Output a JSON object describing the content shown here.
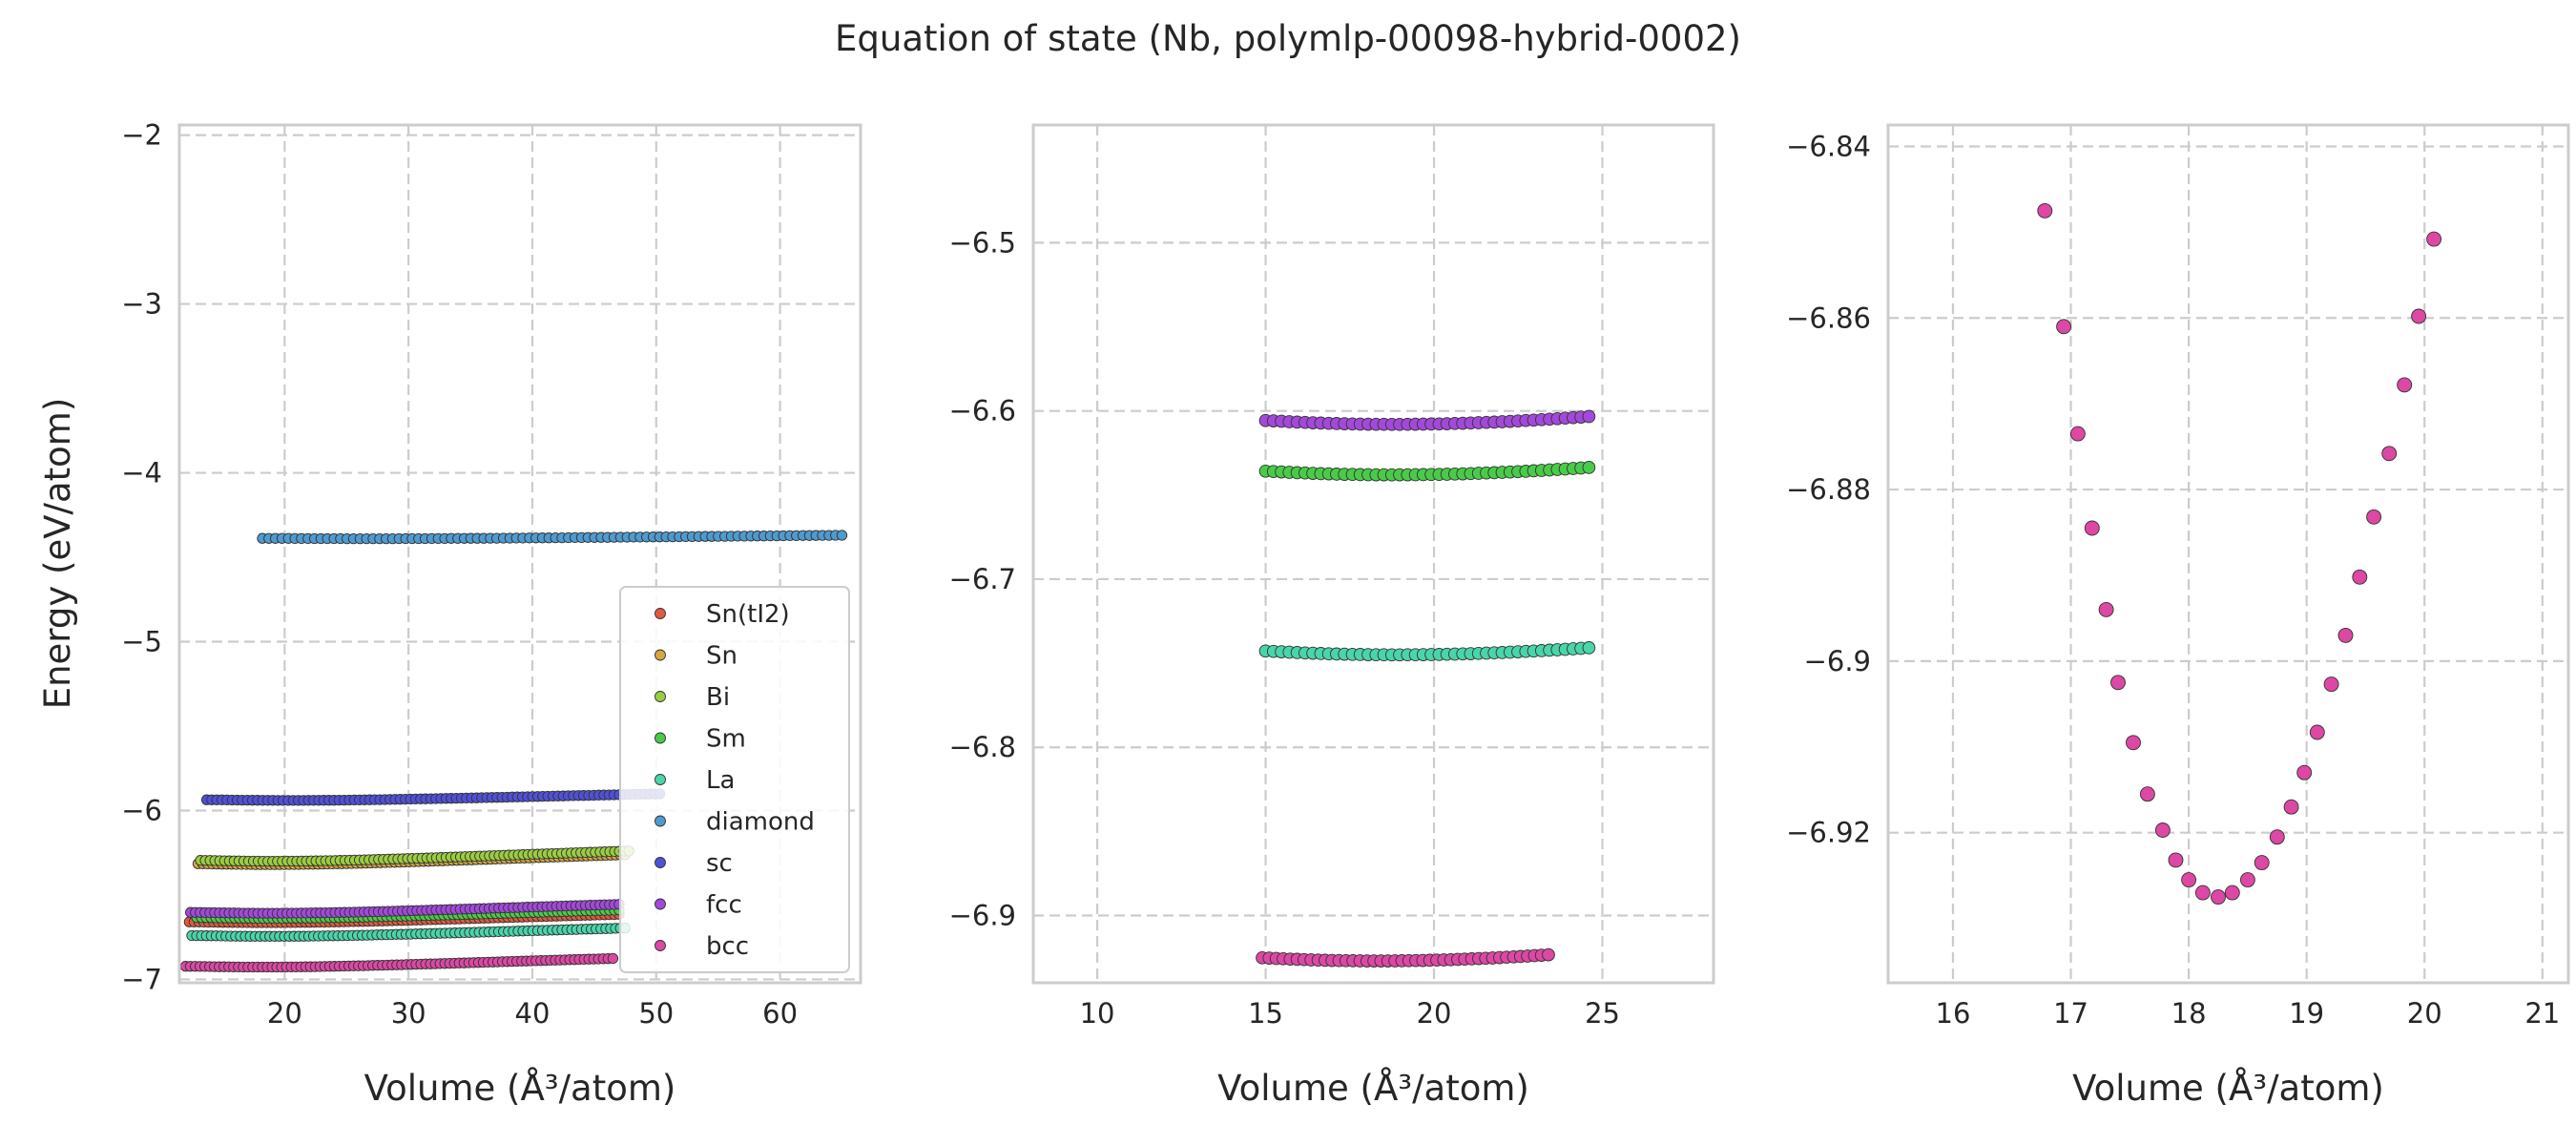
{
  "title": "Equation of state (Nb, polymlp-00098-hybrid-0002)",
  "legend": {
    "position": "lower right",
    "entries": [
      {
        "label": "Sn(tI2)",
        "color": "#e4583e"
      },
      {
        "label": "Sn",
        "color": "#d7a740"
      },
      {
        "label": "Bi",
        "color": "#9bcd40"
      },
      {
        "label": "Sm",
        "color": "#48cc48"
      },
      {
        "label": "La",
        "color": "#49d5aa"
      },
      {
        "label": "diamond",
        "color": "#4d9bd0"
      },
      {
        "label": "sc",
        "color": "#5050d8"
      },
      {
        "label": "fcc",
        "color": "#a448dc"
      },
      {
        "label": "bcc",
        "color": "#dc48a4"
      }
    ]
  },
  "chart_data": [
    {
      "type": "scatter",
      "xlabel": "Volume (Å³/atom)",
      "ylabel": "Energy (eV/atom)",
      "xlim": [
        11.5,
        66.5
      ],
      "ylim": [
        -7.02,
        -1.94
      ],
      "xticks": [
        20,
        30,
        40,
        50,
        60
      ],
      "yticks": [
        -7,
        -6,
        -5,
        -4,
        -3,
        -2
      ],
      "grid": true,
      "legend_placement": "lower right",
      "series": [
        {
          "name": "Sn(tI2)",
          "color": "#e4583e",
          "marker_size": 5.2,
          "eos": {
            "V0": 18.5,
            "E0": -6.664,
            "B": 0.0057,
            "Vmin": 12.3,
            "Vmax": 47.0,
            "n": 90
          }
        },
        {
          "name": "Sn",
          "color": "#d7a740",
          "marker_size": 5.2,
          "eos": {
            "V0": 18.8,
            "E0": -6.32,
            "B": 0.0068,
            "Vmin": 13.0,
            "Vmax": 47.5,
            "n": 90
          }
        },
        {
          "name": "Bi",
          "color": "#9bcd40",
          "marker_size": 5.2,
          "eos": {
            "V0": 19.0,
            "E0": -6.3,
            "B": 0.007,
            "Vmin": 13.2,
            "Vmax": 47.8,
            "n": 90
          }
        },
        {
          "name": "Sm",
          "color": "#48cc48",
          "marker_size": 5.2,
          "eos": {
            "V0": 18.8,
            "E0": -6.638,
            "B": 0.0058,
            "Vmin": 12.9,
            "Vmax": 47.0,
            "n": 90
          }
        },
        {
          "name": "La",
          "color": "#49d5aa",
          "marker_size": 5.2,
          "eos": {
            "V0": 18.9,
            "E0": -6.745,
            "B": 0.0057,
            "Vmin": 12.5,
            "Vmax": 47.5,
            "n": 90
          }
        },
        {
          "name": "diamond",
          "color": "#4d9bd0",
          "marker_size": 5.2,
          "eos": {
            "V0": 26.8,
            "E0": -4.39,
            "B": 0.0018,
            "Vmin": 18.2,
            "Vmax": 65.0,
            "n": 90
          }
        },
        {
          "name": "sc",
          "color": "#5050d8",
          "marker_size": 5.2,
          "eos": {
            "V0": 20.5,
            "E0": -5.94,
            "B": 0.0044,
            "Vmin": 13.7,
            "Vmax": 50.3,
            "n": 90
          }
        },
        {
          "name": "fcc",
          "color": "#a448dc",
          "marker_size": 5.2,
          "eos": {
            "V0": 18.8,
            "E0": -6.608,
            "B": 0.0062,
            "Vmin": 12.4,
            "Vmax": 47.0,
            "n": 90
          }
        },
        {
          "name": "bcc",
          "color": "#dc48a4",
          "marker_size": 5.2,
          "eos": {
            "V0": 18.3,
            "E0": -6.927,
            "B": 0.006,
            "Vmin": 12.0,
            "Vmax": 46.5,
            "n": 90
          }
        }
      ]
    },
    {
      "type": "scatter",
      "xlabel": "Volume (Å³/atom)",
      "ylabel": "",
      "xlim": [
        8.1,
        28.3
      ],
      "ylim": [
        -6.94,
        -6.43
      ],
      "xticks": [
        10,
        15,
        20,
        25
      ],
      "yticks": [
        -6.9,
        -6.8,
        -6.7,
        -6.6,
        -6.5
      ],
      "grid": true,
      "series": [
        {
          "name": "La",
          "color": "#49d5aa",
          "marker_size": 6.4,
          "eos": {
            "V0": 18.9,
            "E0": -6.745,
            "B": 0.0057,
            "Vmin": 15.0,
            "Vmax": 24.6,
            "n": 42
          }
        },
        {
          "name": "Sm",
          "color": "#48cc48",
          "marker_size": 6.4,
          "eos": {
            "V0": 18.8,
            "E0": -6.638,
            "B": 0.0058,
            "Vmin": 15.0,
            "Vmax": 24.6,
            "n": 42
          }
        },
        {
          "name": "fcc",
          "color": "#a448dc",
          "marker_size": 6.4,
          "eos": {
            "V0": 18.8,
            "E0": -6.608,
            "B": 0.0062,
            "Vmin": 15.0,
            "Vmax": 24.6,
            "n": 42
          }
        },
        {
          "name": "bcc",
          "color": "#dc48a4",
          "marker_size": 6.4,
          "eos": {
            "V0": 18.3,
            "E0": -6.927,
            "B": 0.006,
            "Vmin": 14.9,
            "Vmax": 23.4,
            "n": 42
          }
        }
      ]
    },
    {
      "type": "scatter",
      "xlabel": "Volume (Å³/atom)",
      "ylabel": "",
      "xlim": [
        15.45,
        21.22
      ],
      "ylim": [
        -6.9375,
        -6.8375
      ],
      "xticks": [
        16,
        17,
        18,
        19,
        20,
        21
      ],
      "yticks": [
        -6.92,
        -6.9,
        -6.88,
        -6.86,
        -6.84
      ],
      "grid": true,
      "series": [
        {
          "name": "bcc",
          "color": "#dc48a4",
          "marker_size": 7.5,
          "points": [
            [
              16.78,
              -6.8475
            ],
            [
              16.94,
              -6.861
            ],
            [
              17.06,
              -6.8735
            ],
            [
              17.18,
              -6.8845
            ],
            [
              17.3,
              -6.894
            ],
            [
              17.4,
              -6.9025
            ],
            [
              17.53,
              -6.9095
            ],
            [
              17.65,
              -6.9155
            ],
            [
              17.78,
              -6.9197
            ],
            [
              17.89,
              -6.9232
            ],
            [
              18.0,
              -6.9255
            ],
            [
              18.12,
              -6.927
            ],
            [
              18.25,
              -6.9275
            ],
            [
              18.37,
              -6.927
            ],
            [
              18.5,
              -6.9255
            ],
            [
              18.62,
              -6.9235
            ],
            [
              18.75,
              -6.9205
            ],
            [
              18.87,
              -6.917
            ],
            [
              18.98,
              -6.913
            ],
            [
              19.09,
              -6.9083
            ],
            [
              19.21,
              -6.9027
            ],
            [
              19.33,
              -6.897
            ],
            [
              19.45,
              -6.8902
            ],
            [
              19.57,
              -6.8832
            ],
            [
              19.7,
              -6.8758
            ],
            [
              19.83,
              -6.8678
            ],
            [
              19.95,
              -6.8598
            ],
            [
              20.08,
              -6.8508
            ]
          ]
        }
      ]
    }
  ]
}
